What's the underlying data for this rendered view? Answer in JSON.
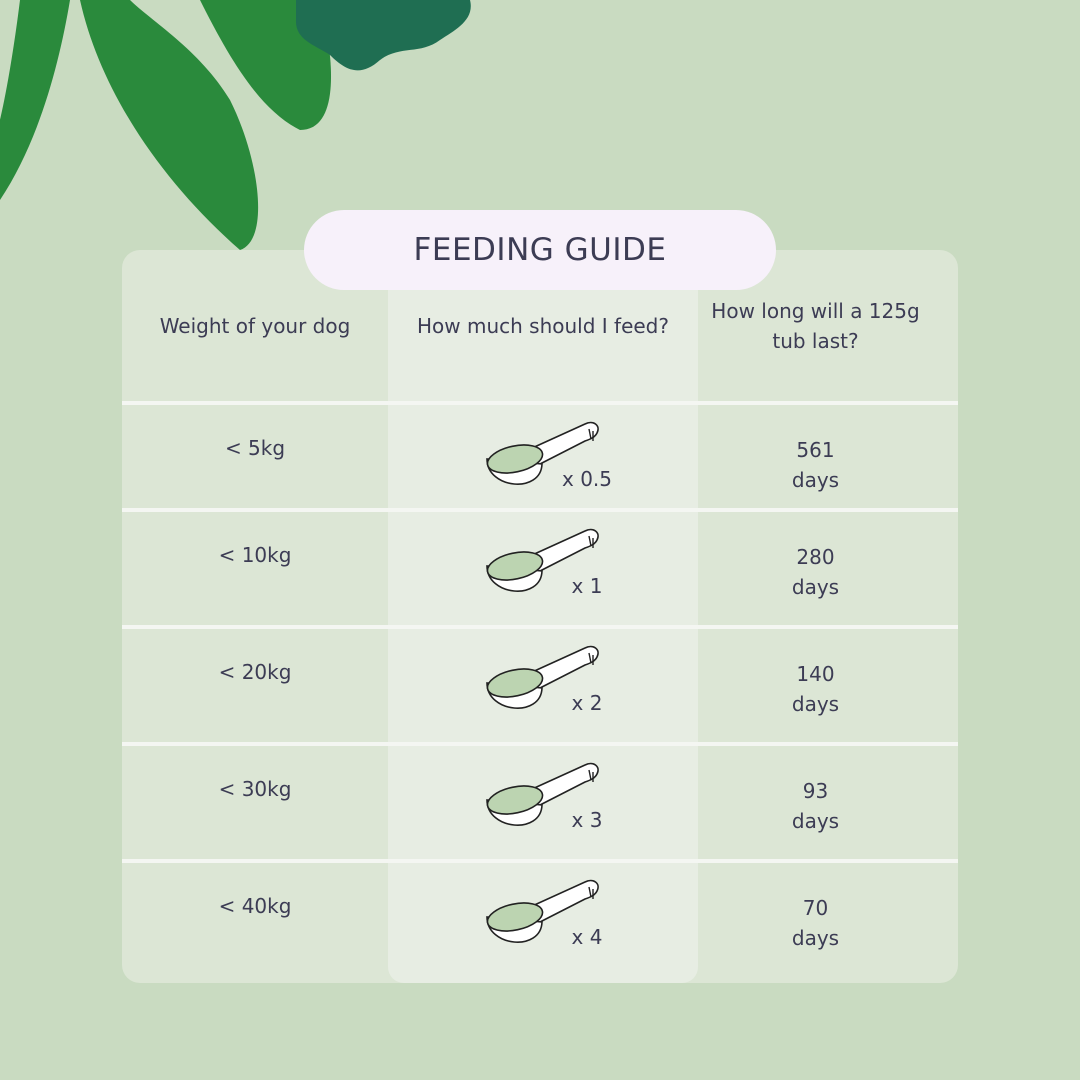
{
  "title": "FEEDING GUIDE",
  "table": {
    "headers": [
      "Weight of your dog",
      "How much should I feed?",
      "How long will a 125g tub last?"
    ],
    "rows": [
      [
        "< 5kg",
        "x 0.5",
        "561",
        "days"
      ],
      [
        "< 10kg",
        "x 1",
        "280",
        "days"
      ],
      [
        "< 20kg",
        "x 2",
        "140",
        "days"
      ],
      [
        "< 30kg",
        "x 3",
        "93",
        "days"
      ],
      [
        "< 40kg",
        "x 4",
        "70",
        "days"
      ]
    ]
  }
}
